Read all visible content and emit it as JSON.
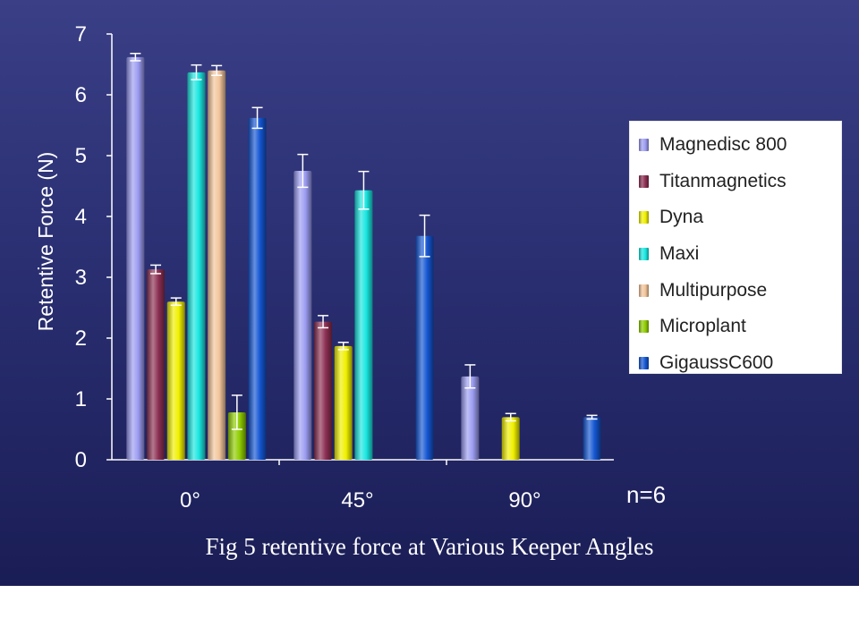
{
  "chart_data": {
    "type": "bar",
    "title": "",
    "xlabel": "",
    "ylabel": "Retentive Force (N)",
    "ylim": [
      0,
      7
    ],
    "yticks": [
      0,
      1,
      2,
      3,
      4,
      5,
      6,
      7
    ],
    "categories": [
      "0°",
      "45°",
      "90°"
    ],
    "error_bars": true,
    "legend_position": "right",
    "series": [
      {
        "name": "Magnedisc 800",
        "color": "#9c9cf2",
        "values": [
          6.62,
          4.75,
          1.37
        ],
        "errors": [
          0.06,
          0.27,
          0.19
        ]
      },
      {
        "name": "Titanmagnetics",
        "color": "#8c2f52",
        "values": [
          3.13,
          2.27,
          null
        ],
        "errors": [
          0.07,
          0.1,
          null
        ]
      },
      {
        "name": "Dyna",
        "color": "#f0f000",
        "values": [
          2.6,
          1.87,
          0.7
        ],
        "errors": [
          0.06,
          0.06,
          0.06
        ]
      },
      {
        "name": "Maxi",
        "color": "#19e6e0",
        "values": [
          6.37,
          4.43,
          null
        ],
        "errors": [
          0.12,
          0.31,
          null
        ]
      },
      {
        "name": "Multipurpose",
        "color": "#f2c59a",
        "values": [
          6.4,
          null,
          null
        ],
        "errors": [
          0.08,
          null,
          null
        ]
      },
      {
        "name": "Microplant",
        "color": "#8fcc00",
        "values": [
          0.78,
          null,
          null
        ],
        "errors": [
          0.28,
          null,
          null
        ]
      },
      {
        "name": "GigaussC600",
        "color": "#1456d2",
        "values": [
          5.62,
          3.68,
          0.7
        ],
        "errors": [
          0.17,
          0.34,
          0.03
        ]
      }
    ]
  },
  "annotation": "n=6",
  "caption": "Fig 5 retentive force at Various Keeper Angles"
}
